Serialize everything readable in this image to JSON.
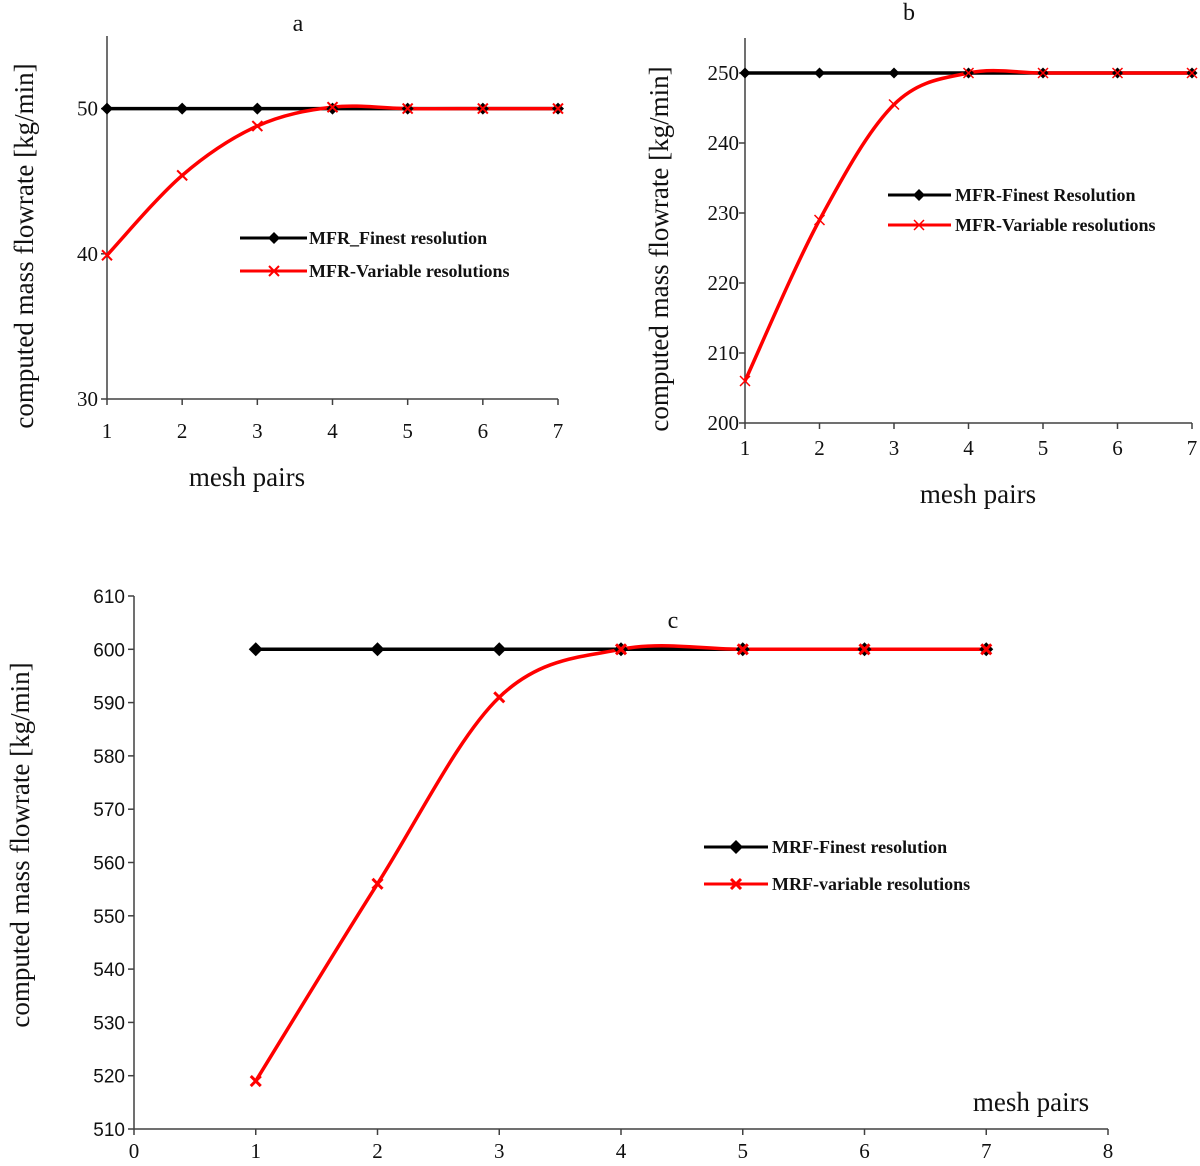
{
  "chart_data": [
    {
      "type": "line",
      "title": "a",
      "xlabel": "mesh pairs",
      "ylabel": "computed mass flowrate [kg/min]",
      "x": [
        1,
        2,
        3,
        4,
        5,
        6,
        7
      ],
      "xlim": [
        1,
        7
      ],
      "ylim": [
        30,
        55
      ],
      "xticks": [
        "1",
        "2",
        "3",
        "4",
        "5",
        "6",
        "7"
      ],
      "yticks": [
        "30",
        "40",
        "50"
      ],
      "ytick_values": [
        30,
        40,
        50
      ],
      "legend_position": "center-right",
      "series": [
        {
          "name": "MFR_Finest resolution",
          "color": "#000000",
          "marker": "diamond",
          "values": [
            50,
            50,
            50,
            50,
            50,
            50,
            50
          ]
        },
        {
          "name": "MFR-Variable resolutions",
          "color": "#ff0000",
          "marker": "x",
          "values": [
            39.9,
            45.4,
            48.8,
            50.1,
            50,
            50,
            50
          ]
        }
      ]
    },
    {
      "type": "line",
      "title": "b",
      "xlabel": "mesh pairs",
      "ylabel": "computed mass flowrate [kg/min]",
      "x": [
        1,
        2,
        3,
        4,
        5,
        6,
        7
      ],
      "xlim": [
        1,
        7
      ],
      "ylim": [
        200,
        255
      ],
      "xticks": [
        "1",
        "2",
        "3",
        "4",
        "5",
        "6",
        "7"
      ],
      "yticks": [
        "200",
        "210",
        "220",
        "230",
        "240",
        "250"
      ],
      "ytick_values": [
        200,
        210,
        220,
        230,
        240,
        250
      ],
      "legend_position": "center-right",
      "series": [
        {
          "name": "MFR-Finest Resolution",
          "color": "#000000",
          "marker": "diamond",
          "values": [
            250,
            250,
            250,
            250,
            250,
            250,
            250
          ]
        },
        {
          "name": "MFR-Variable resolutions",
          "color": "#ff0000",
          "marker": "x",
          "values": [
            206,
            229,
            245.5,
            250,
            250,
            250,
            250
          ]
        }
      ]
    },
    {
      "type": "line",
      "title": "c",
      "xlabel": "mesh pairs",
      "ylabel": "computed mass flowrate [kg/min]",
      "x": [
        1,
        2,
        3,
        4,
        5,
        6,
        7
      ],
      "xlim": [
        0,
        8
      ],
      "ylim": [
        510,
        610
      ],
      "xticks": [
        "0",
        "1",
        "2",
        "3",
        "4",
        "5",
        "6",
        "7",
        "8"
      ],
      "yticks": [
        "510",
        "520",
        "530",
        "540",
        "550",
        "560",
        "570",
        "580",
        "590",
        "600",
        "610"
      ],
      "ytick_values": [
        510,
        520,
        530,
        540,
        550,
        560,
        570,
        580,
        590,
        600,
        610
      ],
      "legend_position": "center-right",
      "series": [
        {
          "name": "MRF-Finest resolution",
          "color": "#000000",
          "marker": "diamond",
          "values": [
            600,
            600,
            600,
            600,
            600,
            600,
            600
          ]
        },
        {
          "name": "MRF-variable resolutions",
          "color": "#ff0000",
          "marker": "x",
          "values": [
            519,
            556,
            591,
            600,
            600,
            600,
            600
          ]
        }
      ]
    }
  ]
}
